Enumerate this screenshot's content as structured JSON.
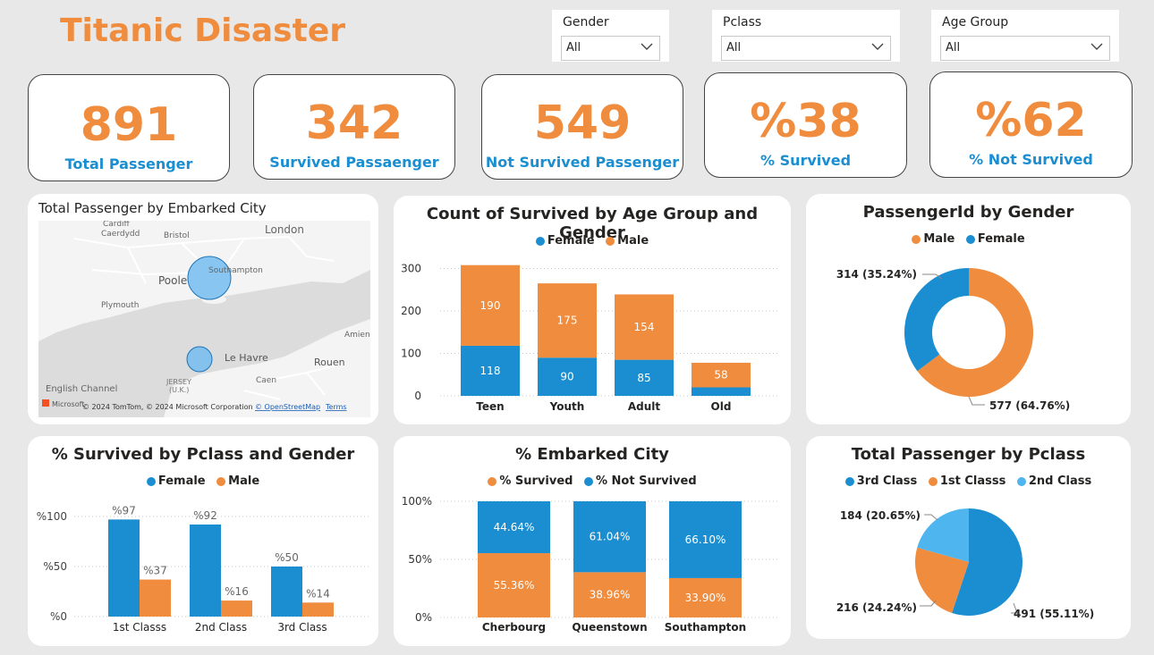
{
  "title": "Titanic Disaster",
  "colors": {
    "blue": "#1a8ed1",
    "orange": "#ef8c3e",
    "lightblue": "#4fb5ee",
    "accent": "#ef8c3e",
    "caption": "#1a8ed1"
  },
  "slicers": [
    {
      "label": "Gender",
      "value": "All"
    },
    {
      "label": "Pclass",
      "value": "All"
    },
    {
      "label": "Age Group",
      "value": "All"
    }
  ],
  "kpis": [
    {
      "value": "891",
      "label": "Total Passenger"
    },
    {
      "value": "342",
      "label": "Survived Passaenger"
    },
    {
      "value": "549",
      "label": "Not Survived Passenger"
    },
    {
      "value": "%38",
      "label": "% Survived"
    },
    {
      "value": "%62",
      "label": "% Not Survived"
    }
  ],
  "map": {
    "title": "Total Passenger by Embarked City",
    "places": [
      "Cardiff",
      "Caerdydd",
      "Bristol",
      "London",
      "Southampton",
      "Poole",
      "Plymouth",
      "Le Havre",
      "Rouen",
      "Amiens",
      "Caen",
      "English Channel",
      "JERSEY",
      "(U.K.)"
    ],
    "attribution": "© 2024 TomTom, © 2024 Microsoft Corporation",
    "osm_link": "© OpenStreetMap",
    "terms_link": "Terms",
    "brand": "Microsoft"
  },
  "chart_data": [
    {
      "type": "bar",
      "stacked": true,
      "title": "Count of Survived by Age Group and Gender",
      "categories": [
        "Teen",
        "Youth",
        "Adult",
        "Old"
      ],
      "series": [
        {
          "name": "Female",
          "values": [
            118,
            90,
            85,
            20
          ],
          "labels": [
            "118",
            "90",
            "85",
            ""
          ]
        },
        {
          "name": "Male",
          "values": [
            190,
            175,
            154,
            58
          ],
          "labels": [
            "190",
            "175",
            "154",
            "58"
          ]
        }
      ],
      "legend_order": [
        "Female",
        "Male"
      ],
      "yticks": [
        "0",
        "100",
        "200",
        "300"
      ],
      "ylim": [
        0,
        320
      ],
      "legend": "top"
    },
    {
      "type": "pie",
      "donut": true,
      "title": "PassengerId by Gender",
      "slices": [
        {
          "name": "Male",
          "value": 577,
          "label": "577 (64.76%)"
        },
        {
          "name": "Female",
          "value": 314,
          "label": "314 (35.24%)"
        }
      ],
      "legend": "top"
    },
    {
      "type": "bar",
      "grouped": true,
      "title": "% Survived by Pclass and Gender",
      "categories": [
        "1st Classs",
        "2nd Class",
        "3rd Class"
      ],
      "series": [
        {
          "name": "Female",
          "values": [
            97,
            92,
            50
          ],
          "labels": [
            "%97",
            "%92",
            "%50"
          ]
        },
        {
          "name": "Male",
          "values": [
            37,
            16,
            14
          ],
          "labels": [
            "%37",
            "%16",
            "%14"
          ]
        }
      ],
      "yticks": [
        "%0",
        "%50",
        "%100"
      ],
      "ylim": [
        0,
        110
      ],
      "legend": "top"
    },
    {
      "type": "bar",
      "stacked": true,
      "percent": true,
      "title": "% Embarked City",
      "categories": [
        "Cherbourg",
        "Queenstown",
        "Southampton"
      ],
      "series": [
        {
          "name": "% Survived",
          "values": [
            55.36,
            38.96,
            33.9
          ],
          "labels": [
            "55.36%",
            "38.96%",
            "33.90%"
          ]
        },
        {
          "name": "% Not Survived",
          "values": [
            44.64,
            61.04,
            66.1
          ],
          "labels": [
            "44.64%",
            "61.04%",
            "66.10%"
          ]
        }
      ],
      "yticks": [
        "0%",
        "50%",
        "100%"
      ],
      "ylim": [
        0,
        100
      ],
      "legend": "top"
    },
    {
      "type": "pie",
      "title": "Total Passenger by Pclass",
      "slices": [
        {
          "name": "3rd Class",
          "value": 491,
          "label": "491 (55.11%)"
        },
        {
          "name": "1st Classs",
          "value": 216,
          "label": "216 (24.24%)"
        },
        {
          "name": "2nd Class",
          "value": 184,
          "label": "184 (20.65%)"
        }
      ],
      "legend": "top"
    }
  ]
}
